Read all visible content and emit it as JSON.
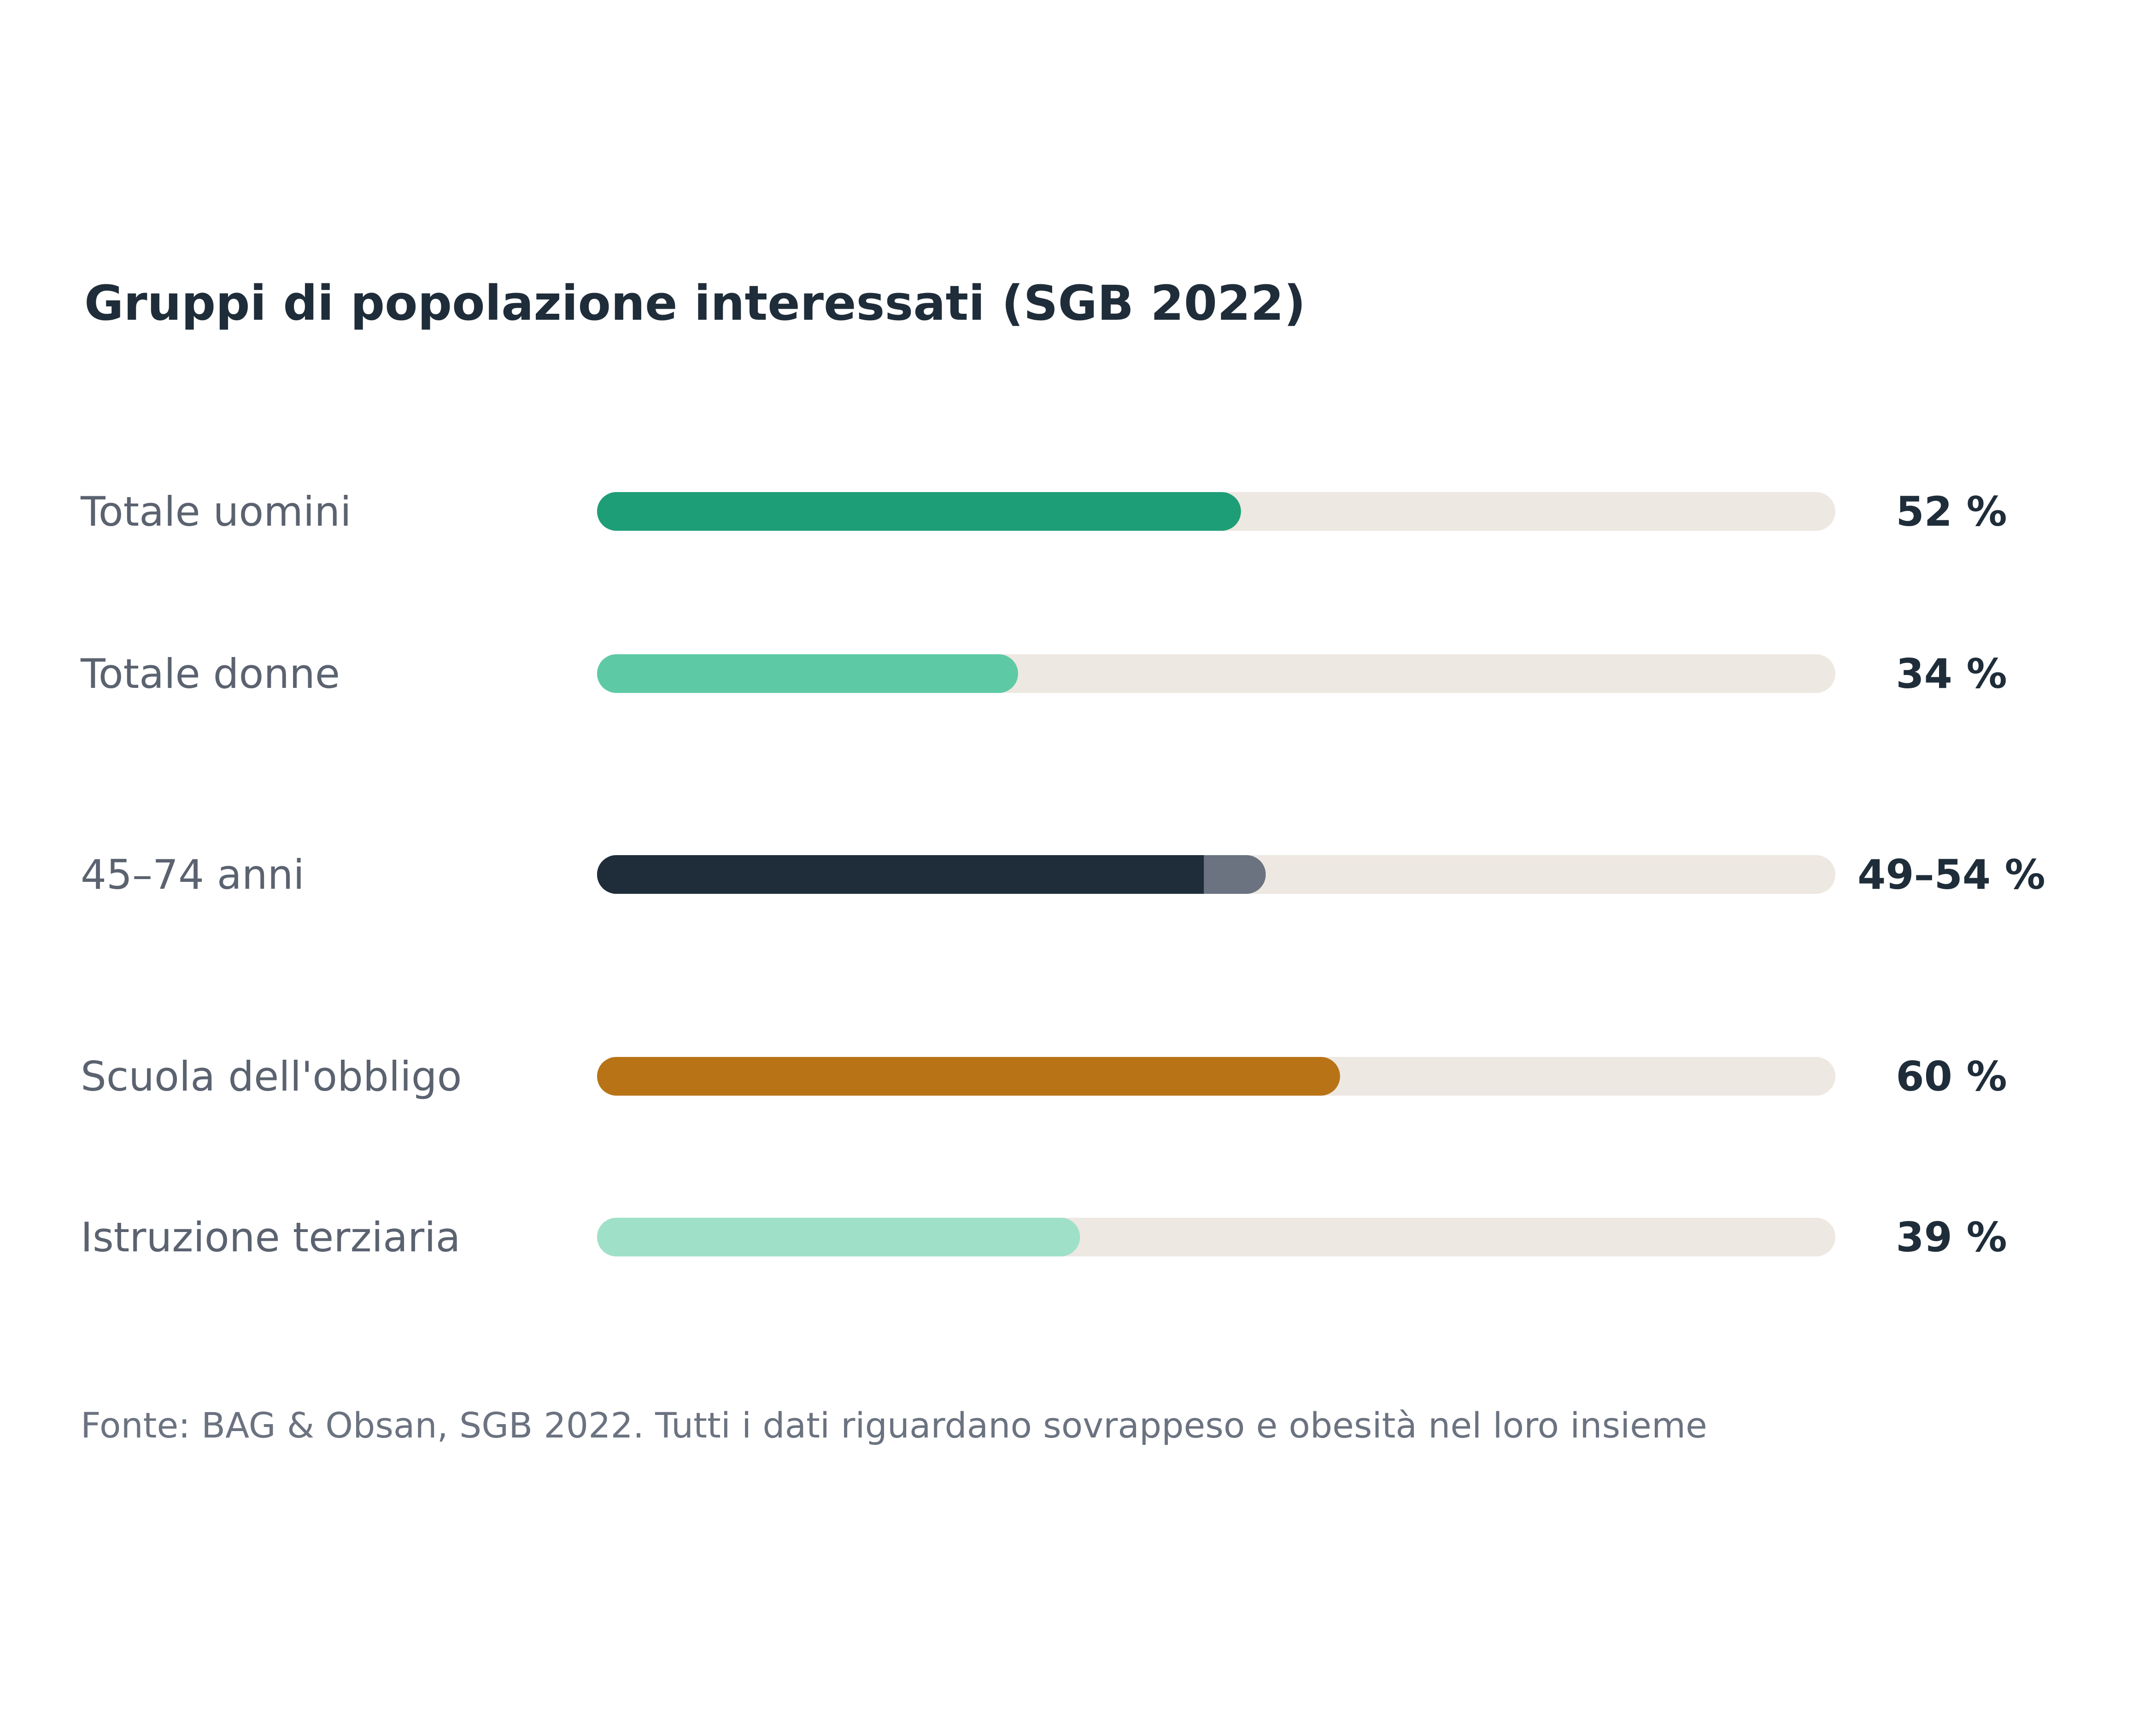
{
  "chart_data": {
    "type": "bar",
    "title": "Gruppi di popolazione interessati (SGB 2022)",
    "source": "Fonte: BAG & Obsan, SGB 2022. Tutti i dati riguardano sovrappeso e obesità nel loro insieme",
    "xlim": [
      0,
      100
    ],
    "unit": "%",
    "track_color": "#ede8e1",
    "rows": [
      {
        "label": "Totale uomini",
        "value": 52,
        "value_label": "52 %",
        "color": "#1e9e76"
      },
      {
        "label": "Totale donne",
        "value": 34,
        "value_label": "34 %",
        "color": "#5ecaa5"
      },
      {
        "label": "45–74 anni",
        "value": [
          49,
          54
        ],
        "value_label": "49–54 %",
        "color": "#1f2d3a",
        "range_color": "#6b7280"
      },
      {
        "label": "Scuola dell'obbligo",
        "value": 60,
        "value_label": "60 %",
        "color": "#b87316"
      },
      {
        "label": "Istruzione terziaria",
        "value": 39,
        "value_label": "39 %",
        "color": "#9fe0c9"
      }
    ]
  }
}
